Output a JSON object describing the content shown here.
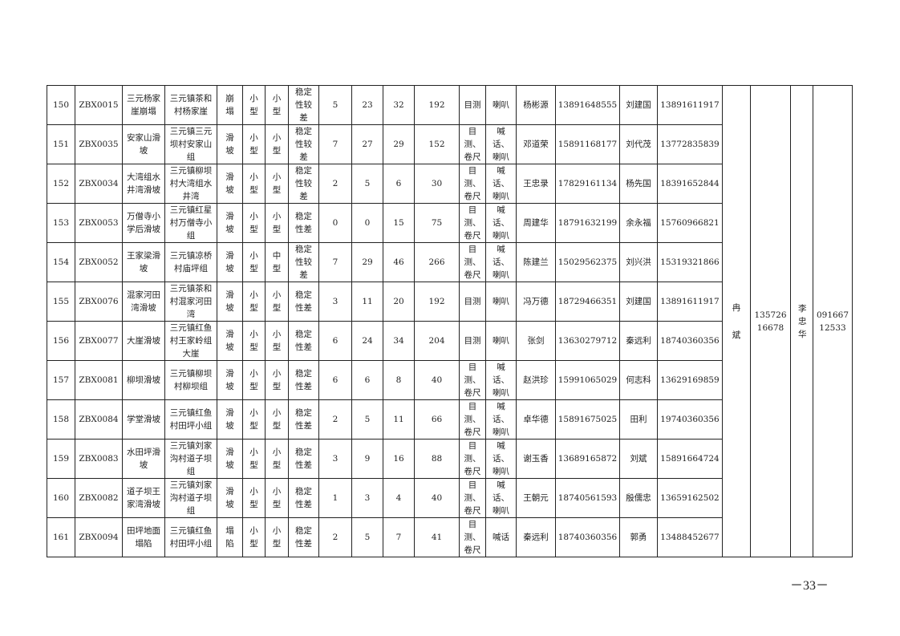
{
  "rows": [
    [
      "150",
      "ZBX0015",
      "三元杨家崖崩塌",
      "三元镇茶和村杨家崖",
      "崩塌",
      "小型",
      "小型",
      "稳定性较差",
      "5",
      "23",
      "32",
      "192",
      "目测",
      "喇叭",
      "杨彬源",
      "13891648555",
      "刘建国",
      "13891611917"
    ],
    [
      "151",
      "ZBX0035",
      "安家山滑坡",
      "三元镇三元坝村安家山组",
      "滑坡",
      "小型",
      "小型",
      "稳定性较差",
      "7",
      "27",
      "29",
      "152",
      "目测、卷尺",
      "喊话、喇叭",
      "邓道荣",
      "15891168177",
      "刘代茂",
      "13772835839"
    ],
    [
      "152",
      "ZBX0034",
      "大湾组水井湾滑坡",
      "三元镇柳坝村大湾组水井湾",
      "滑坡",
      "小型",
      "小型",
      "稳定性较差",
      "2",
      "5",
      "6",
      "30",
      "目测、卷尺",
      "喊话、喇叭",
      "王忠录",
      "17829161134",
      "杨先国",
      "18391652844"
    ],
    [
      "153",
      "ZBX0053",
      "万僧寺小学后滑坡",
      "三元镇红星村万僧寺小组",
      "滑坡",
      "小型",
      "小型",
      "稳定性差",
      "0",
      "0",
      "15",
      "75",
      "目测、卷尺",
      "喊话、喇叭",
      "周建华",
      "18791632199",
      "余永福",
      "15760966821"
    ],
    [
      "154",
      "ZBX0052",
      "王家梁滑坡",
      "三元镇凉桥村庙坪组",
      "滑坡",
      "小型",
      "中型",
      "稳定性较差",
      "7",
      "29",
      "46",
      "266",
      "目测、卷尺",
      "喊话、喇叭",
      "陈建兰",
      "15029562375",
      "刘兴洪",
      "15319321866"
    ],
    [
      "155",
      "ZBX0076",
      "混家河田湾滑坡",
      "三元镇茶和村混家河田湾",
      "滑坡",
      "小型",
      "小型",
      "稳定性差",
      "3",
      "11",
      "20",
      "192",
      "目测",
      "喇叭",
      "冯万德",
      "18729466351",
      "刘建国",
      "13891611917"
    ],
    [
      "156",
      "ZBX0077",
      "大崖滑坡",
      "三元镇红鱼村王家岭组大崖",
      "滑坡",
      "小型",
      "小型",
      "稳定性差",
      "6",
      "24",
      "34",
      "204",
      "目测",
      "喇叭",
      "张剑",
      "13630279712",
      "秦远利",
      "18740360356"
    ],
    [
      "157",
      "ZBX0081",
      "柳坝滑坡",
      "三元镇柳坝村柳坝组",
      "滑坡",
      "小型",
      "小型",
      "稳定性差",
      "6",
      "6",
      "8",
      "40",
      "目测、卷尺",
      "喊话、喇叭",
      "赵洪珍",
      "15991065029",
      "何志科",
      "13629169859"
    ],
    [
      "158",
      "ZBX0084",
      "学堂滑坡",
      "三元镇红鱼村田坪小组",
      "滑坡",
      "小型",
      "小型",
      "稳定性差",
      "2",
      "5",
      "11",
      "66",
      "目测、卷尺",
      "喊话、喇叭",
      "卓华德",
      "15891675025",
      "田利",
      "19740360356"
    ],
    [
      "159",
      "ZBX0083",
      "水田坪滑坡",
      "三元镇刘家沟村道子坝组",
      "滑坡",
      "小型",
      "小型",
      "稳定性差",
      "3",
      "9",
      "16",
      "88",
      "目测、卷尺",
      "喊话、喇叭",
      "谢玉香",
      "13689165872",
      "刘斌",
      "15891664724"
    ],
    [
      "160",
      "ZBX0082",
      "道子坝王家湾滑坡",
      "三元镇刘家沟村道子坝组",
      "滑坡",
      "小型",
      "小型",
      "稳定性差",
      "1",
      "3",
      "4",
      "40",
      "目测、卷尺",
      "喊话、喇叭",
      "王朝元",
      "18740561593",
      "殷儒忠",
      "13659162502"
    ],
    [
      "161",
      "ZBX0094",
      "田坪地面塌陷",
      "三元镇红鱼村田坪小组",
      "塌陷",
      "小型",
      "小型",
      "稳定性差",
      "2",
      "5",
      "7",
      "41",
      "目测、卷尺",
      "喊话",
      "秦远利",
      "18740360356",
      "郭勇",
      "13488452677"
    ]
  ],
  "merged": {
    "name1": "冉斌",
    "phone1": "13572616678",
    "name2": "李忠华",
    "phone2": "09166712533"
  },
  "page_number": "－33－"
}
